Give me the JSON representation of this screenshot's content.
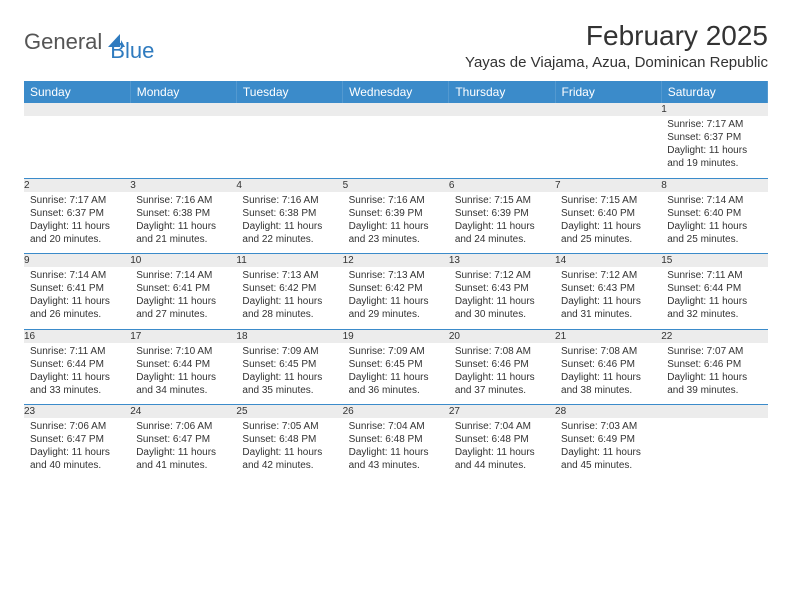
{
  "logo": {
    "general": "General",
    "blue": "Blue",
    "shape_color": "#2f7bbf"
  },
  "title": "February 2025",
  "location": "Yayas de Viajama, Azua, Dominican Republic",
  "colors": {
    "header_bg": "#3b8bca",
    "header_text": "#ffffff",
    "daynum_bg": "#ececec",
    "border": "#3b8bca",
    "text": "#333333"
  },
  "day_headers": [
    "Sunday",
    "Monday",
    "Tuesday",
    "Wednesday",
    "Thursday",
    "Friday",
    "Saturday"
  ],
  "weeks": [
    [
      null,
      null,
      null,
      null,
      null,
      null,
      {
        "n": "1",
        "sunrise": "Sunrise: 7:17 AM",
        "sunset": "Sunset: 6:37 PM",
        "daylight": "Daylight: 11 hours and 19 minutes."
      }
    ],
    [
      {
        "n": "2",
        "sunrise": "Sunrise: 7:17 AM",
        "sunset": "Sunset: 6:37 PM",
        "daylight": "Daylight: 11 hours and 20 minutes."
      },
      {
        "n": "3",
        "sunrise": "Sunrise: 7:16 AM",
        "sunset": "Sunset: 6:38 PM",
        "daylight": "Daylight: 11 hours and 21 minutes."
      },
      {
        "n": "4",
        "sunrise": "Sunrise: 7:16 AM",
        "sunset": "Sunset: 6:38 PM",
        "daylight": "Daylight: 11 hours and 22 minutes."
      },
      {
        "n": "5",
        "sunrise": "Sunrise: 7:16 AM",
        "sunset": "Sunset: 6:39 PM",
        "daylight": "Daylight: 11 hours and 23 minutes."
      },
      {
        "n": "6",
        "sunrise": "Sunrise: 7:15 AM",
        "sunset": "Sunset: 6:39 PM",
        "daylight": "Daylight: 11 hours and 24 minutes."
      },
      {
        "n": "7",
        "sunrise": "Sunrise: 7:15 AM",
        "sunset": "Sunset: 6:40 PM",
        "daylight": "Daylight: 11 hours and 25 minutes."
      },
      {
        "n": "8",
        "sunrise": "Sunrise: 7:14 AM",
        "sunset": "Sunset: 6:40 PM",
        "daylight": "Daylight: 11 hours and 25 minutes."
      }
    ],
    [
      {
        "n": "9",
        "sunrise": "Sunrise: 7:14 AM",
        "sunset": "Sunset: 6:41 PM",
        "daylight": "Daylight: 11 hours and 26 minutes."
      },
      {
        "n": "10",
        "sunrise": "Sunrise: 7:14 AM",
        "sunset": "Sunset: 6:41 PM",
        "daylight": "Daylight: 11 hours and 27 minutes."
      },
      {
        "n": "11",
        "sunrise": "Sunrise: 7:13 AM",
        "sunset": "Sunset: 6:42 PM",
        "daylight": "Daylight: 11 hours and 28 minutes."
      },
      {
        "n": "12",
        "sunrise": "Sunrise: 7:13 AM",
        "sunset": "Sunset: 6:42 PM",
        "daylight": "Daylight: 11 hours and 29 minutes."
      },
      {
        "n": "13",
        "sunrise": "Sunrise: 7:12 AM",
        "sunset": "Sunset: 6:43 PM",
        "daylight": "Daylight: 11 hours and 30 minutes."
      },
      {
        "n": "14",
        "sunrise": "Sunrise: 7:12 AM",
        "sunset": "Sunset: 6:43 PM",
        "daylight": "Daylight: 11 hours and 31 minutes."
      },
      {
        "n": "15",
        "sunrise": "Sunrise: 7:11 AM",
        "sunset": "Sunset: 6:44 PM",
        "daylight": "Daylight: 11 hours and 32 minutes."
      }
    ],
    [
      {
        "n": "16",
        "sunrise": "Sunrise: 7:11 AM",
        "sunset": "Sunset: 6:44 PM",
        "daylight": "Daylight: 11 hours and 33 minutes."
      },
      {
        "n": "17",
        "sunrise": "Sunrise: 7:10 AM",
        "sunset": "Sunset: 6:44 PM",
        "daylight": "Daylight: 11 hours and 34 minutes."
      },
      {
        "n": "18",
        "sunrise": "Sunrise: 7:09 AM",
        "sunset": "Sunset: 6:45 PM",
        "daylight": "Daylight: 11 hours and 35 minutes."
      },
      {
        "n": "19",
        "sunrise": "Sunrise: 7:09 AM",
        "sunset": "Sunset: 6:45 PM",
        "daylight": "Daylight: 11 hours and 36 minutes."
      },
      {
        "n": "20",
        "sunrise": "Sunrise: 7:08 AM",
        "sunset": "Sunset: 6:46 PM",
        "daylight": "Daylight: 11 hours and 37 minutes."
      },
      {
        "n": "21",
        "sunrise": "Sunrise: 7:08 AM",
        "sunset": "Sunset: 6:46 PM",
        "daylight": "Daylight: 11 hours and 38 minutes."
      },
      {
        "n": "22",
        "sunrise": "Sunrise: 7:07 AM",
        "sunset": "Sunset: 6:46 PM",
        "daylight": "Daylight: 11 hours and 39 minutes."
      }
    ],
    [
      {
        "n": "23",
        "sunrise": "Sunrise: 7:06 AM",
        "sunset": "Sunset: 6:47 PM",
        "daylight": "Daylight: 11 hours and 40 minutes."
      },
      {
        "n": "24",
        "sunrise": "Sunrise: 7:06 AM",
        "sunset": "Sunset: 6:47 PM",
        "daylight": "Daylight: 11 hours and 41 minutes."
      },
      {
        "n": "25",
        "sunrise": "Sunrise: 7:05 AM",
        "sunset": "Sunset: 6:48 PM",
        "daylight": "Daylight: 11 hours and 42 minutes."
      },
      {
        "n": "26",
        "sunrise": "Sunrise: 7:04 AM",
        "sunset": "Sunset: 6:48 PM",
        "daylight": "Daylight: 11 hours and 43 minutes."
      },
      {
        "n": "27",
        "sunrise": "Sunrise: 7:04 AM",
        "sunset": "Sunset: 6:48 PM",
        "daylight": "Daylight: 11 hours and 44 minutes."
      },
      {
        "n": "28",
        "sunrise": "Sunrise: 7:03 AM",
        "sunset": "Sunset: 6:49 PM",
        "daylight": "Daylight: 11 hours and 45 minutes."
      },
      null
    ]
  ]
}
